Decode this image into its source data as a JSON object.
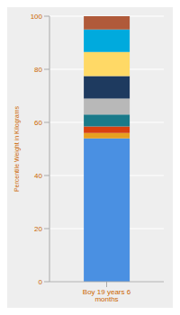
{
  "chart_data": {
    "type": "bar",
    "stacked": true,
    "categories": [
      "Boy 19 years 6 months"
    ],
    "series": [
      {
        "color": "#4A90E2",
        "values": [
          54.0
        ]
      },
      {
        "color": "#E8A020",
        "values": [
          2.0
        ]
      },
      {
        "color": "#D94010",
        "values": [
          2.5
        ]
      },
      {
        "color": "#1A7A8A",
        "values": [
          4.5
        ]
      },
      {
        "color": "#B8B8B8",
        "values": [
          6.0
        ]
      },
      {
        "color": "#1E3A5F",
        "values": [
          8.5
        ]
      },
      {
        "color": "#FFD966",
        "values": [
          9.0
        ]
      },
      {
        "color": "#00AADD",
        "values": [
          8.5
        ]
      },
      {
        "color": "#B05A3A",
        "values": [
          5.0
        ]
      }
    ],
    "ylabel": "Percentile Weight in Kilograms",
    "ylim": [
      0,
      100
    ],
    "yticks": [
      0,
      20,
      40,
      60,
      80,
      100
    ],
    "grid": true
  }
}
